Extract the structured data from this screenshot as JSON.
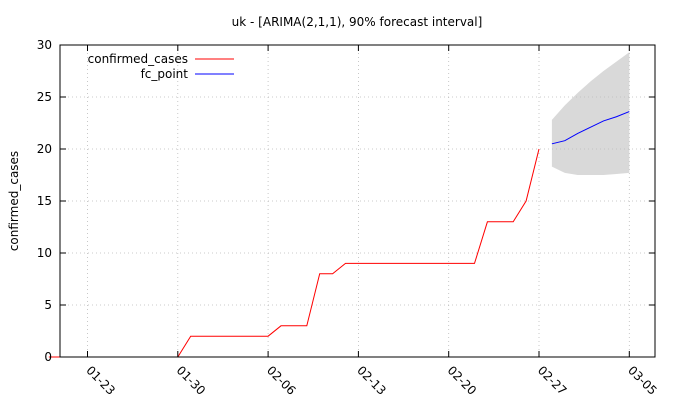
{
  "chart_data": {
    "type": "line",
    "title": "uk -  [ARIMA(2,1,1), 90% forecast interval]",
    "xlabel": "",
    "ylabel": "confirmed_cases",
    "ylim": [
      0,
      30
    ],
    "x_start": "2020-01-20",
    "xlim_days": [
      0,
      45
    ],
    "yticks": [
      0,
      5,
      10,
      15,
      20,
      25,
      30
    ],
    "xticks": [
      {
        "day": 3,
        "label": "01-23"
      },
      {
        "day": 10,
        "label": "01-30"
      },
      {
        "day": 17,
        "label": "02-06"
      },
      {
        "day": 24,
        "label": "02-13"
      },
      {
        "day": 31,
        "label": "02-20"
      },
      {
        "day": 38,
        "label": "02-27"
      },
      {
        "day": 45,
        "label": "03-05"
      }
    ],
    "grid": true,
    "legend_position": "top-left",
    "series": [
      {
        "name": "confirmed_cases",
        "color": "#ff0000",
        "points": [
          [
            0,
            0
          ],
          [
            1,
            0
          ],
          [
            2,
            0
          ],
          [
            3,
            0
          ],
          [
            4,
            0
          ],
          [
            5,
            0
          ],
          [
            6,
            0
          ],
          [
            7,
            0
          ],
          [
            8,
            0
          ],
          [
            9,
            0
          ],
          [
            10,
            0
          ],
          [
            11,
            2
          ],
          [
            12,
            2
          ],
          [
            13,
            2
          ],
          [
            14,
            2
          ],
          [
            15,
            2
          ],
          [
            16,
            2
          ],
          [
            17,
            2
          ],
          [
            18,
            3
          ],
          [
            19,
            3
          ],
          [
            20,
            3
          ],
          [
            21,
            8
          ],
          [
            22,
            8
          ],
          [
            23,
            9
          ],
          [
            24,
            9
          ],
          [
            25,
            9
          ],
          [
            26,
            9
          ],
          [
            27,
            9
          ],
          [
            28,
            9
          ],
          [
            29,
            9
          ],
          [
            30,
            9
          ],
          [
            31,
            9
          ],
          [
            32,
            9
          ],
          [
            33,
            9
          ],
          [
            34,
            13
          ],
          [
            35,
            13
          ],
          [
            36,
            13
          ],
          [
            37,
            15
          ],
          [
            38,
            20
          ]
        ]
      },
      {
        "name": "fc_point",
        "color": "#0000ff",
        "points": [
          [
            39,
            20.5
          ],
          [
            40,
            20.8
          ],
          [
            41,
            21.5
          ],
          [
            42,
            22.1
          ],
          [
            43,
            22.7
          ],
          [
            44,
            23.1
          ],
          [
            45,
            23.6
          ]
        ]
      }
    ],
    "interval": {
      "color": "#d9d9d9",
      "x": [
        39,
        40,
        41,
        42,
        43,
        44,
        45
      ],
      "lower": [
        18.3,
        17.7,
        17.5,
        17.5,
        17.5,
        17.6,
        17.7
      ],
      "upper": [
        22.8,
        24.2,
        25.4,
        26.5,
        27.5,
        28.4,
        29.3
      ]
    }
  }
}
